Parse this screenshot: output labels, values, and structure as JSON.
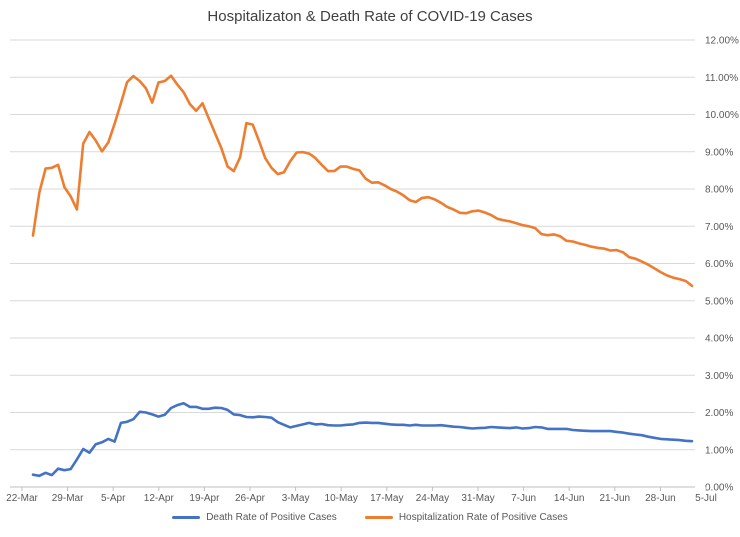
{
  "chart_data": {
    "type": "line",
    "title": "Hospitalizaton & Death Rate of COVID-19 Cases",
    "xlabel": "",
    "ylabel": "",
    "y_axis_position": "right",
    "ylim": [
      0,
      0.12
    ],
    "y_ticks": [
      0,
      0.01,
      0.02,
      0.03,
      0.04,
      0.05,
      0.06,
      0.07,
      0.08,
      0.09,
      0.1,
      0.11,
      0.12
    ],
    "y_tick_labels": [
      "0.00%",
      "1.00%",
      "2.00%",
      "3.00%",
      "4.00%",
      "5.00%",
      "6.00%",
      "7.00%",
      "8.00%",
      "9.00%",
      "10.00%",
      "11.00%",
      "12.00%"
    ],
    "x_tick_labels": [
      "22-Mar",
      "29-Mar",
      "5-Apr",
      "12-Apr",
      "19-Apr",
      "26-Apr",
      "3-May",
      "10-May",
      "17-May",
      "24-May",
      "31-May",
      "7-Jun",
      "14-Jun",
      "21-Jun",
      "28-Jun",
      "5-Jul"
    ],
    "grid": true,
    "legend_position": "bottom",
    "series": [
      {
        "name": "Death Rate of Positive Cases",
        "color": "#4472C4",
        "values": [
          0.0033,
          0.003,
          0.0038,
          0.0032,
          0.0049,
          0.0045,
          0.0048,
          0.0074,
          0.0102,
          0.0092,
          0.0115,
          0.012,
          0.0129,
          0.0122,
          0.0172,
          0.0175,
          0.0182,
          0.0202,
          0.02,
          0.0195,
          0.0189,
          0.0194,
          0.0212,
          0.022,
          0.0225,
          0.0215,
          0.0215,
          0.021,
          0.021,
          0.0213,
          0.0212,
          0.0207,
          0.0195,
          0.0193,
          0.0188,
          0.0187,
          0.0189,
          0.0188,
          0.0186,
          0.0174,
          0.0167,
          0.016,
          0.0164,
          0.0168,
          0.0172,
          0.0168,
          0.0169,
          0.0166,
          0.0165,
          0.0165,
          0.0167,
          0.0168,
          0.0172,
          0.0173,
          0.0172,
          0.0172,
          0.017,
          0.0168,
          0.0167,
          0.0167,
          0.0165,
          0.0167,
          0.0165,
          0.0165,
          0.0165,
          0.0166,
          0.0164,
          0.0162,
          0.0161,
          0.0159,
          0.0157,
          0.0158,
          0.0159,
          0.0161,
          0.016,
          0.0159,
          0.0158,
          0.016,
          0.0157,
          0.0158,
          0.0161,
          0.016,
          0.0156,
          0.0156,
          0.0156,
          0.0156,
          0.0153,
          0.0152,
          0.0151,
          0.015,
          0.015,
          0.015,
          0.015,
          0.0148,
          0.0146,
          0.0143,
          0.0141,
          0.0139,
          0.0135,
          0.0132,
          0.0129,
          0.0128,
          0.0127,
          0.0126,
          0.0124,
          0.0123
        ]
      },
      {
        "name": "Hospitalization Rate of Positive Cases",
        "color": "#ED7D31",
        "values": [
          0.0675,
          0.079,
          0.0855,
          0.0857,
          0.0865,
          0.0805,
          0.078,
          0.0745,
          0.0922,
          0.0953,
          0.093,
          0.0901,
          0.0925,
          0.0975,
          0.103,
          0.1087,
          0.1103,
          0.109,
          0.107,
          0.1032,
          0.1086,
          0.109,
          0.1104,
          0.108,
          0.106,
          0.1028,
          0.101,
          0.103,
          0.099,
          0.095,
          0.091,
          0.086,
          0.0848,
          0.0885,
          0.0977,
          0.0973,
          0.093,
          0.0883,
          0.0857,
          0.084,
          0.0845,
          0.0875,
          0.0898,
          0.0899,
          0.0895,
          0.0883,
          0.0865,
          0.0848,
          0.0848,
          0.086,
          0.086,
          0.0854,
          0.085,
          0.0828,
          0.0817,
          0.0818,
          0.081,
          0.08,
          0.0793,
          0.0783,
          0.077,
          0.0765,
          0.0776,
          0.0778,
          0.0772,
          0.0763,
          0.0752,
          0.0745,
          0.0736,
          0.0735,
          0.074,
          0.0742,
          0.0737,
          0.073,
          0.072,
          0.0716,
          0.0713,
          0.0708,
          0.0703,
          0.07,
          0.0695,
          0.0679,
          0.0676,
          0.0678,
          0.0673,
          0.0661,
          0.0659,
          0.0654,
          0.065,
          0.0645,
          0.0642,
          0.064,
          0.0635,
          0.0636,
          0.063,
          0.0617,
          0.0613,
          0.0605,
          0.0597,
          0.0587,
          0.0577,
          0.0568,
          0.0562,
          0.0558,
          0.0553,
          0.054
        ]
      }
    ]
  }
}
